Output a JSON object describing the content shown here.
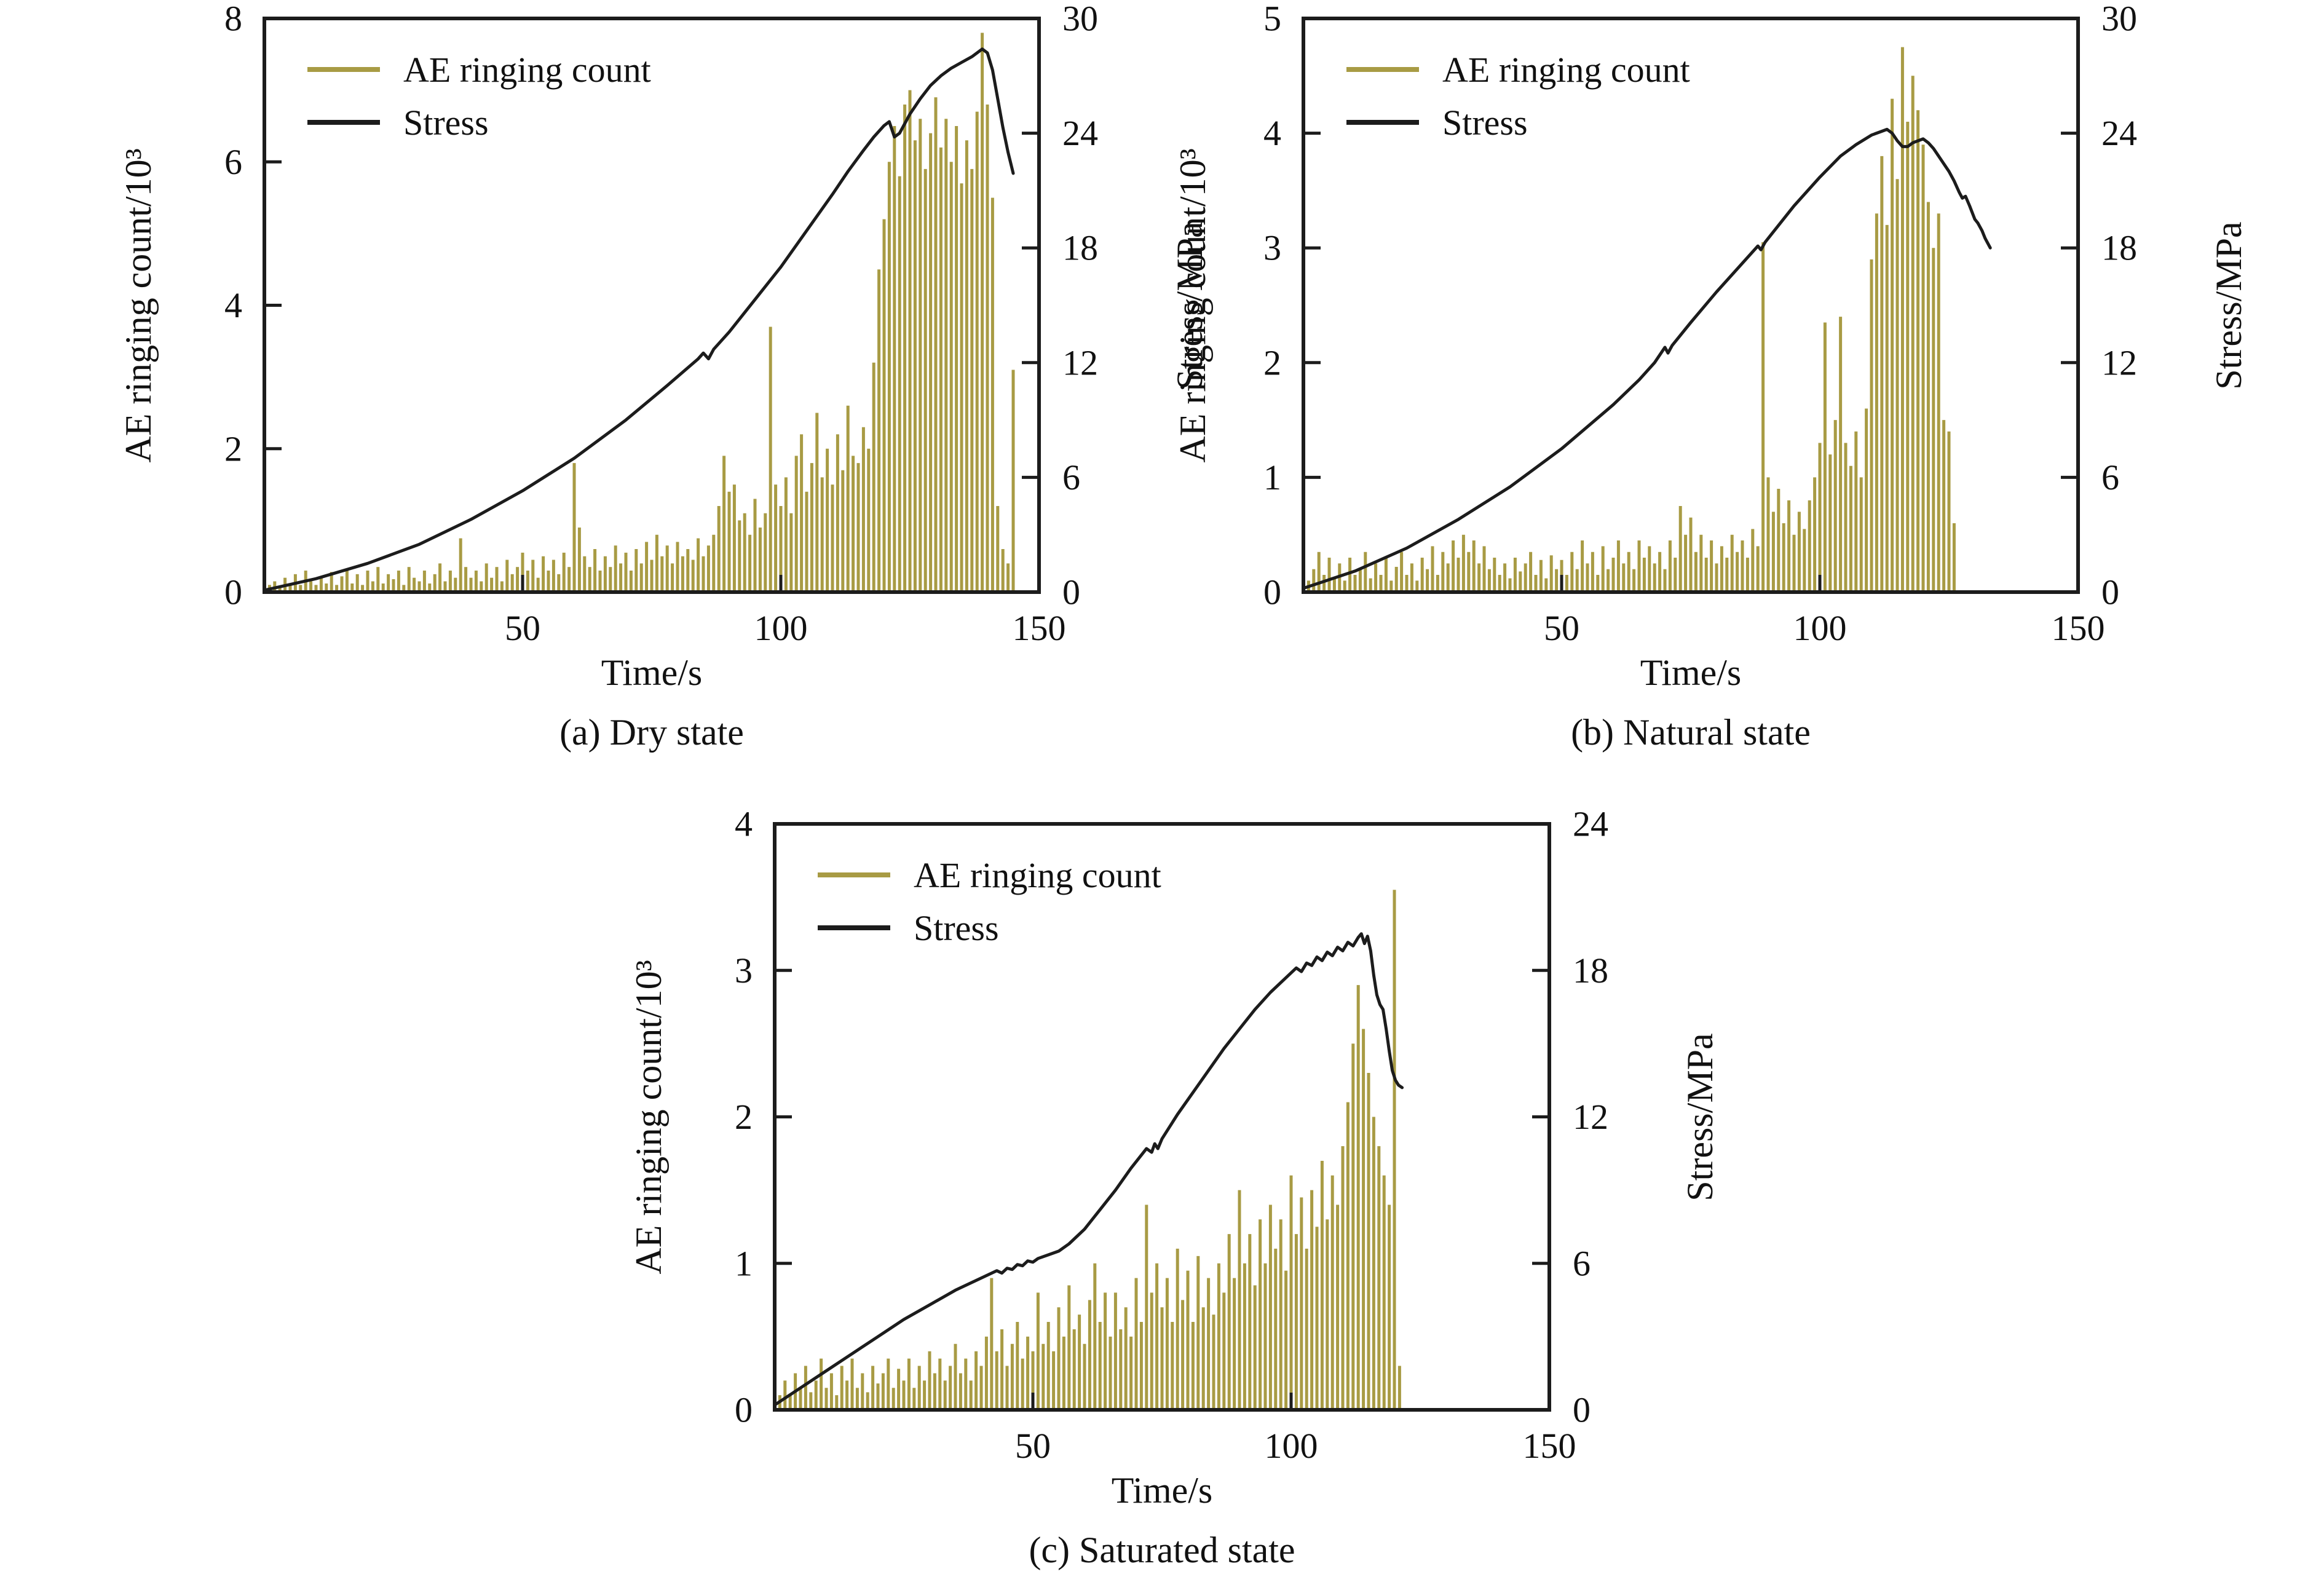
{
  "figure": {
    "background": "#ffffff",
    "bar_color": "#a89b44",
    "stress_color": "#1c1c1c",
    "axis_color": "#1c1c1c",
    "legend": [
      "AE ringing count",
      "Stress"
    ]
  },
  "chart_data": [
    {
      "id": "a",
      "type": "bar+line",
      "caption": "(a) Dry state",
      "xlabel": "Time/s",
      "ylabel_left": "AE ringing count/10³",
      "ylabel_right": "Stress/MPa",
      "xlim": [
        0,
        150
      ],
      "xticks": [
        50,
        100,
        150
      ],
      "ylim_left": [
        0,
        8
      ],
      "yticks_left": [
        0,
        2,
        4,
        6,
        8
      ],
      "ylim_right": [
        0,
        30
      ],
      "yticks_right": [
        0,
        6,
        12,
        18,
        24,
        30
      ],
      "legend_position": "upper-left",
      "grid": false,
      "bars": {
        "t0": 1,
        "dt": 1,
        "values": [
          0.1,
          0.15,
          0.08,
          0.2,
          0.12,
          0.25,
          0.1,
          0.3,
          0.15,
          0.1,
          0.2,
          0.12,
          0.28,
          0.1,
          0.22,
          0.3,
          0.12,
          0.25,
          0.1,
          0.3,
          0.15,
          0.35,
          0.12,
          0.25,
          0.18,
          0.3,
          0.1,
          0.35,
          0.2,
          0.15,
          0.3,
          0.12,
          0.25,
          0.4,
          0.15,
          0.3,
          0.2,
          0.75,
          0.35,
          0.2,
          0.3,
          0.15,
          0.4,
          0.2,
          0.35,
          0.15,
          0.45,
          0.25,
          0.35,
          0.55,
          0.3,
          0.45,
          0.2,
          0.5,
          0.3,
          0.45,
          0.25,
          0.55,
          0.35,
          1.8,
          0.9,
          0.5,
          0.35,
          0.6,
          0.3,
          0.5,
          0.35,
          0.65,
          0.4,
          0.55,
          0.3,
          0.6,
          0.4,
          0.7,
          0.45,
          0.8,
          0.5,
          0.65,
          0.4,
          0.7,
          0.5,
          0.6,
          0.45,
          0.75,
          0.5,
          0.65,
          0.8,
          1.2,
          1.9,
          1.4,
          1.5,
          1.0,
          1.1,
          0.8,
          1.3,
          0.9,
          1.1,
          3.7,
          1.5,
          1.2,
          1.6,
          1.1,
          1.9,
          2.2,
          1.4,
          1.8,
          2.5,
          1.6,
          2.0,
          1.5,
          2.2,
          1.7,
          2.6,
          1.9,
          1.8,
          2.3,
          2.0,
          3.2,
          4.5,
          5.2,
          6.0,
          6.5,
          5.8,
          6.8,
          7.0,
          6.3,
          6.6,
          5.9,
          6.4,
          6.9,
          6.2,
          6.6,
          6.0,
          6.5,
          5.7,
          6.3,
          5.9,
          6.7,
          7.8,
          6.8,
          5.5,
          1.2,
          0.6,
          0.4,
          3.1
        ]
      },
      "stress": [
        [
          0,
          0.1
        ],
        [
          10,
          0.7
        ],
        [
          20,
          1.5
        ],
        [
          30,
          2.5
        ],
        [
          40,
          3.8
        ],
        [
          50,
          5.3
        ],
        [
          60,
          7.0
        ],
        [
          70,
          9.0
        ],
        [
          78,
          10.8
        ],
        [
          84,
          12.2
        ],
        [
          85,
          12.5
        ],
        [
          86,
          12.2
        ],
        [
          87,
          12.7
        ],
        [
          90,
          13.6
        ],
        [
          95,
          15.3
        ],
        [
          100,
          17.0
        ],
        [
          105,
          18.9
        ],
        [
          110,
          20.8
        ],
        [
          113,
          22.0
        ],
        [
          116,
          23.1
        ],
        [
          118,
          23.8
        ],
        [
          120,
          24.4
        ],
        [
          121,
          24.6
        ],
        [
          122,
          23.8
        ],
        [
          123,
          24.0
        ],
        [
          125,
          25.0
        ],
        [
          127,
          25.8
        ],
        [
          129,
          26.5
        ],
        [
          131,
          27.0
        ],
        [
          133,
          27.4
        ],
        [
          135,
          27.7
        ],
        [
          137,
          28.0
        ],
        [
          139,
          28.4
        ],
        [
          140,
          28.2
        ],
        [
          141,
          27.3
        ],
        [
          142,
          25.8
        ],
        [
          143,
          24.3
        ],
        [
          144,
          23.0
        ],
        [
          145,
          21.9
        ]
      ]
    },
    {
      "id": "b",
      "type": "bar+line",
      "caption": "(b) Natural state",
      "xlabel": "Time/s",
      "ylabel_left": "AE ringing count/10³",
      "ylabel_right": "Stress/MPa",
      "xlim": [
        0,
        150
      ],
      "xticks": [
        50,
        100,
        150
      ],
      "ylim_left": [
        0,
        5
      ],
      "yticks_left": [
        0,
        1,
        2,
        3,
        4,
        5
      ],
      "ylim_right": [
        0,
        30
      ],
      "yticks_right": [
        0,
        6,
        12,
        18,
        24,
        30
      ],
      "legend_position": "upper-left",
      "grid": false,
      "bars": {
        "t0": 1,
        "dt": 1,
        "values": [
          0.1,
          0.2,
          0.35,
          0.15,
          0.3,
          0.12,
          0.25,
          0.1,
          0.3,
          0.15,
          0.2,
          0.35,
          0.12,
          0.25,
          0.15,
          0.3,
          0.1,
          0.22,
          0.35,
          0.15,
          0.25,
          0.1,
          0.3,
          0.2,
          0.4,
          0.15,
          0.35,
          0.25,
          0.45,
          0.3,
          0.5,
          0.35,
          0.45,
          0.25,
          0.4,
          0.2,
          0.3,
          0.15,
          0.25,
          0.12,
          0.3,
          0.18,
          0.25,
          0.35,
          0.15,
          0.28,
          0.12,
          0.32,
          0.2,
          0.28,
          0.15,
          0.35,
          0.2,
          0.45,
          0.25,
          0.35,
          0.15,
          0.4,
          0.2,
          0.3,
          0.45,
          0.25,
          0.35,
          0.2,
          0.45,
          0.3,
          0.4,
          0.25,
          0.35,
          0.2,
          0.45,
          0.3,
          0.75,
          0.5,
          0.65,
          0.35,
          0.5,
          0.3,
          0.45,
          0.25,
          0.4,
          0.3,
          0.5,
          0.35,
          0.45,
          0.3,
          0.55,
          0.4,
          3.05,
          1.0,
          0.7,
          0.9,
          0.6,
          0.8,
          0.5,
          0.7,
          0.55,
          0.8,
          1.0,
          1.3,
          2.35,
          1.2,
          1.5,
          2.4,
          1.3,
          1.1,
          1.4,
          1.0,
          1.6,
          2.9,
          3.3,
          3.8,
          3.2,
          4.3,
          3.6,
          4.75,
          4.1,
          4.5,
          4.2,
          3.9,
          3.4,
          3.0,
          3.3,
          1.5,
          1.4,
          0.6
        ]
      },
      "stress": [
        [
          0,
          0.2
        ],
        [
          10,
          1.1
        ],
        [
          20,
          2.3
        ],
        [
          30,
          3.8
        ],
        [
          40,
          5.5
        ],
        [
          50,
          7.5
        ],
        [
          60,
          9.8
        ],
        [
          65,
          11.1
        ],
        [
          68,
          12.0
        ],
        [
          70,
          12.8
        ],
        [
          70.6,
          12.5
        ],
        [
          71.4,
          12.9
        ],
        [
          75,
          14.1
        ],
        [
          80,
          15.7
        ],
        [
          85,
          17.2
        ],
        [
          88,
          18.1
        ],
        [
          88.6,
          17.9
        ],
        [
          89.4,
          18.3
        ],
        [
          95,
          20.2
        ],
        [
          100,
          21.7
        ],
        [
          104,
          22.8
        ],
        [
          107,
          23.4
        ],
        [
          110,
          23.9
        ],
        [
          112,
          24.1
        ],
        [
          113,
          24.2
        ],
        [
          114,
          24.0
        ],
        [
          115,
          23.6
        ],
        [
          116,
          23.3
        ],
        [
          117,
          23.3
        ],
        [
          118,
          23.5
        ],
        [
          119,
          23.6
        ],
        [
          120,
          23.7
        ],
        [
          121,
          23.5
        ],
        [
          122,
          23.2
        ],
        [
          123,
          22.8
        ],
        [
          124,
          22.4
        ],
        [
          125,
          22.0
        ],
        [
          126,
          21.5
        ],
        [
          127,
          20.9
        ],
        [
          127.6,
          20.6
        ],
        [
          128.2,
          20.7
        ],
        [
          129,
          20.2
        ],
        [
          130,
          19.5
        ],
        [
          130.6,
          19.3
        ],
        [
          131.4,
          18.9
        ],
        [
          132,
          18.5
        ],
        [
          133,
          18.0
        ]
      ]
    },
    {
      "id": "c",
      "type": "bar+line",
      "caption": "(c) Saturated state",
      "xlabel": "Time/s",
      "ylabel_left": "AE ringing count/10³",
      "ylabel_right": "Stress/MPa",
      "xlim": [
        0,
        150
      ],
      "xticks": [
        50,
        100,
        150
      ],
      "ylim_left": [
        0,
        4
      ],
      "yticks_left": [
        0,
        1,
        2,
        3,
        4
      ],
      "ylim_right": [
        0,
        24
      ],
      "yticks_right": [
        0,
        6,
        12,
        18,
        24
      ],
      "legend_position": "upper-left",
      "grid": false,
      "bars": {
        "t0": 1,
        "dt": 1,
        "values": [
          0.1,
          0.2,
          0.1,
          0.25,
          0.15,
          0.3,
          0.12,
          0.2,
          0.35,
          0.15,
          0.25,
          0.1,
          0.3,
          0.2,
          0.35,
          0.15,
          0.25,
          0.12,
          0.3,
          0.18,
          0.25,
          0.35,
          0.15,
          0.28,
          0.2,
          0.35,
          0.15,
          0.3,
          0.2,
          0.4,
          0.25,
          0.35,
          0.2,
          0.3,
          0.45,
          0.25,
          0.35,
          0.2,
          0.4,
          0.3,
          0.5,
          0.9,
          0.4,
          0.55,
          0.3,
          0.45,
          0.6,
          0.35,
          0.5,
          0.4,
          0.8,
          0.45,
          0.6,
          0.4,
          0.7,
          0.5,
          0.85,
          0.55,
          0.65,
          0.45,
          0.75,
          1.0,
          0.6,
          0.8,
          0.5,
          0.8,
          0.55,
          0.7,
          0.5,
          0.9,
          0.6,
          1.4,
          0.8,
          1.0,
          0.7,
          0.9,
          0.6,
          1.1,
          0.75,
          0.95,
          0.6,
          1.05,
          0.7,
          0.9,
          0.65,
          1.0,
          0.8,
          1.2,
          0.9,
          1.5,
          1.0,
          1.2,
          0.85,
          1.3,
          1.0,
          1.4,
          1.1,
          1.3,
          0.95,
          1.6,
          1.2,
          1.45,
          1.1,
          1.5,
          1.25,
          1.7,
          1.3,
          1.6,
          1.4,
          1.8,
          2.1,
          2.5,
          2.9,
          2.6,
          2.3,
          2.0,
          1.8,
          1.6,
          1.4,
          3.55,
          0.3
        ]
      },
      "stress": [
        [
          0,
          0.2
        ],
        [
          5,
          0.9
        ],
        [
          10,
          1.6
        ],
        [
          15,
          2.3
        ],
        [
          20,
          3.0
        ],
        [
          25,
          3.7
        ],
        [
          30,
          4.3
        ],
        [
          35,
          4.9
        ],
        [
          40,
          5.4
        ],
        [
          43,
          5.7
        ],
        [
          44,
          5.6
        ],
        [
          45,
          5.8
        ],
        [
          46,
          5.75
        ],
        [
          47,
          5.95
        ],
        [
          48,
          5.9
        ],
        [
          49,
          6.1
        ],
        [
          50,
          6.05
        ],
        [
          51,
          6.2
        ],
        [
          53,
          6.35
        ],
        [
          55,
          6.5
        ],
        [
          57,
          6.8
        ],
        [
          60,
          7.4
        ],
        [
          63,
          8.2
        ],
        [
          66,
          9.0
        ],
        [
          69,
          9.9
        ],
        [
          72,
          10.7
        ],
        [
          73,
          10.55
        ],
        [
          73.6,
          10.9
        ],
        [
          74.2,
          10.7
        ],
        [
          75,
          11.1
        ],
        [
          78,
          12.1
        ],
        [
          81,
          13.0
        ],
        [
          84,
          13.9
        ],
        [
          87,
          14.8
        ],
        [
          90,
          15.6
        ],
        [
          93,
          16.4
        ],
        [
          96,
          17.1
        ],
        [
          99,
          17.7
        ],
        [
          101,
          18.1
        ],
        [
          102,
          17.95
        ],
        [
          103,
          18.3
        ],
        [
          104,
          18.2
        ],
        [
          105,
          18.55
        ],
        [
          106,
          18.4
        ],
        [
          107,
          18.75
        ],
        [
          108,
          18.6
        ],
        [
          109,
          18.95
        ],
        [
          110,
          18.8
        ],
        [
          111,
          19.15
        ],
        [
          112,
          19.0
        ],
        [
          113,
          19.35
        ],
        [
          113.6,
          19.5
        ],
        [
          114.2,
          19.1
        ],
        [
          114.8,
          19.4
        ],
        [
          115.4,
          18.8
        ],
        [
          116,
          17.8
        ],
        [
          116.6,
          17.0
        ],
        [
          117.2,
          16.6
        ],
        [
          117.8,
          16.4
        ],
        [
          118.4,
          15.6
        ],
        [
          119,
          14.7
        ],
        [
          119.6,
          13.9
        ],
        [
          120.2,
          13.5
        ],
        [
          120.8,
          13.3
        ],
        [
          121.5,
          13.2
        ]
      ]
    }
  ]
}
